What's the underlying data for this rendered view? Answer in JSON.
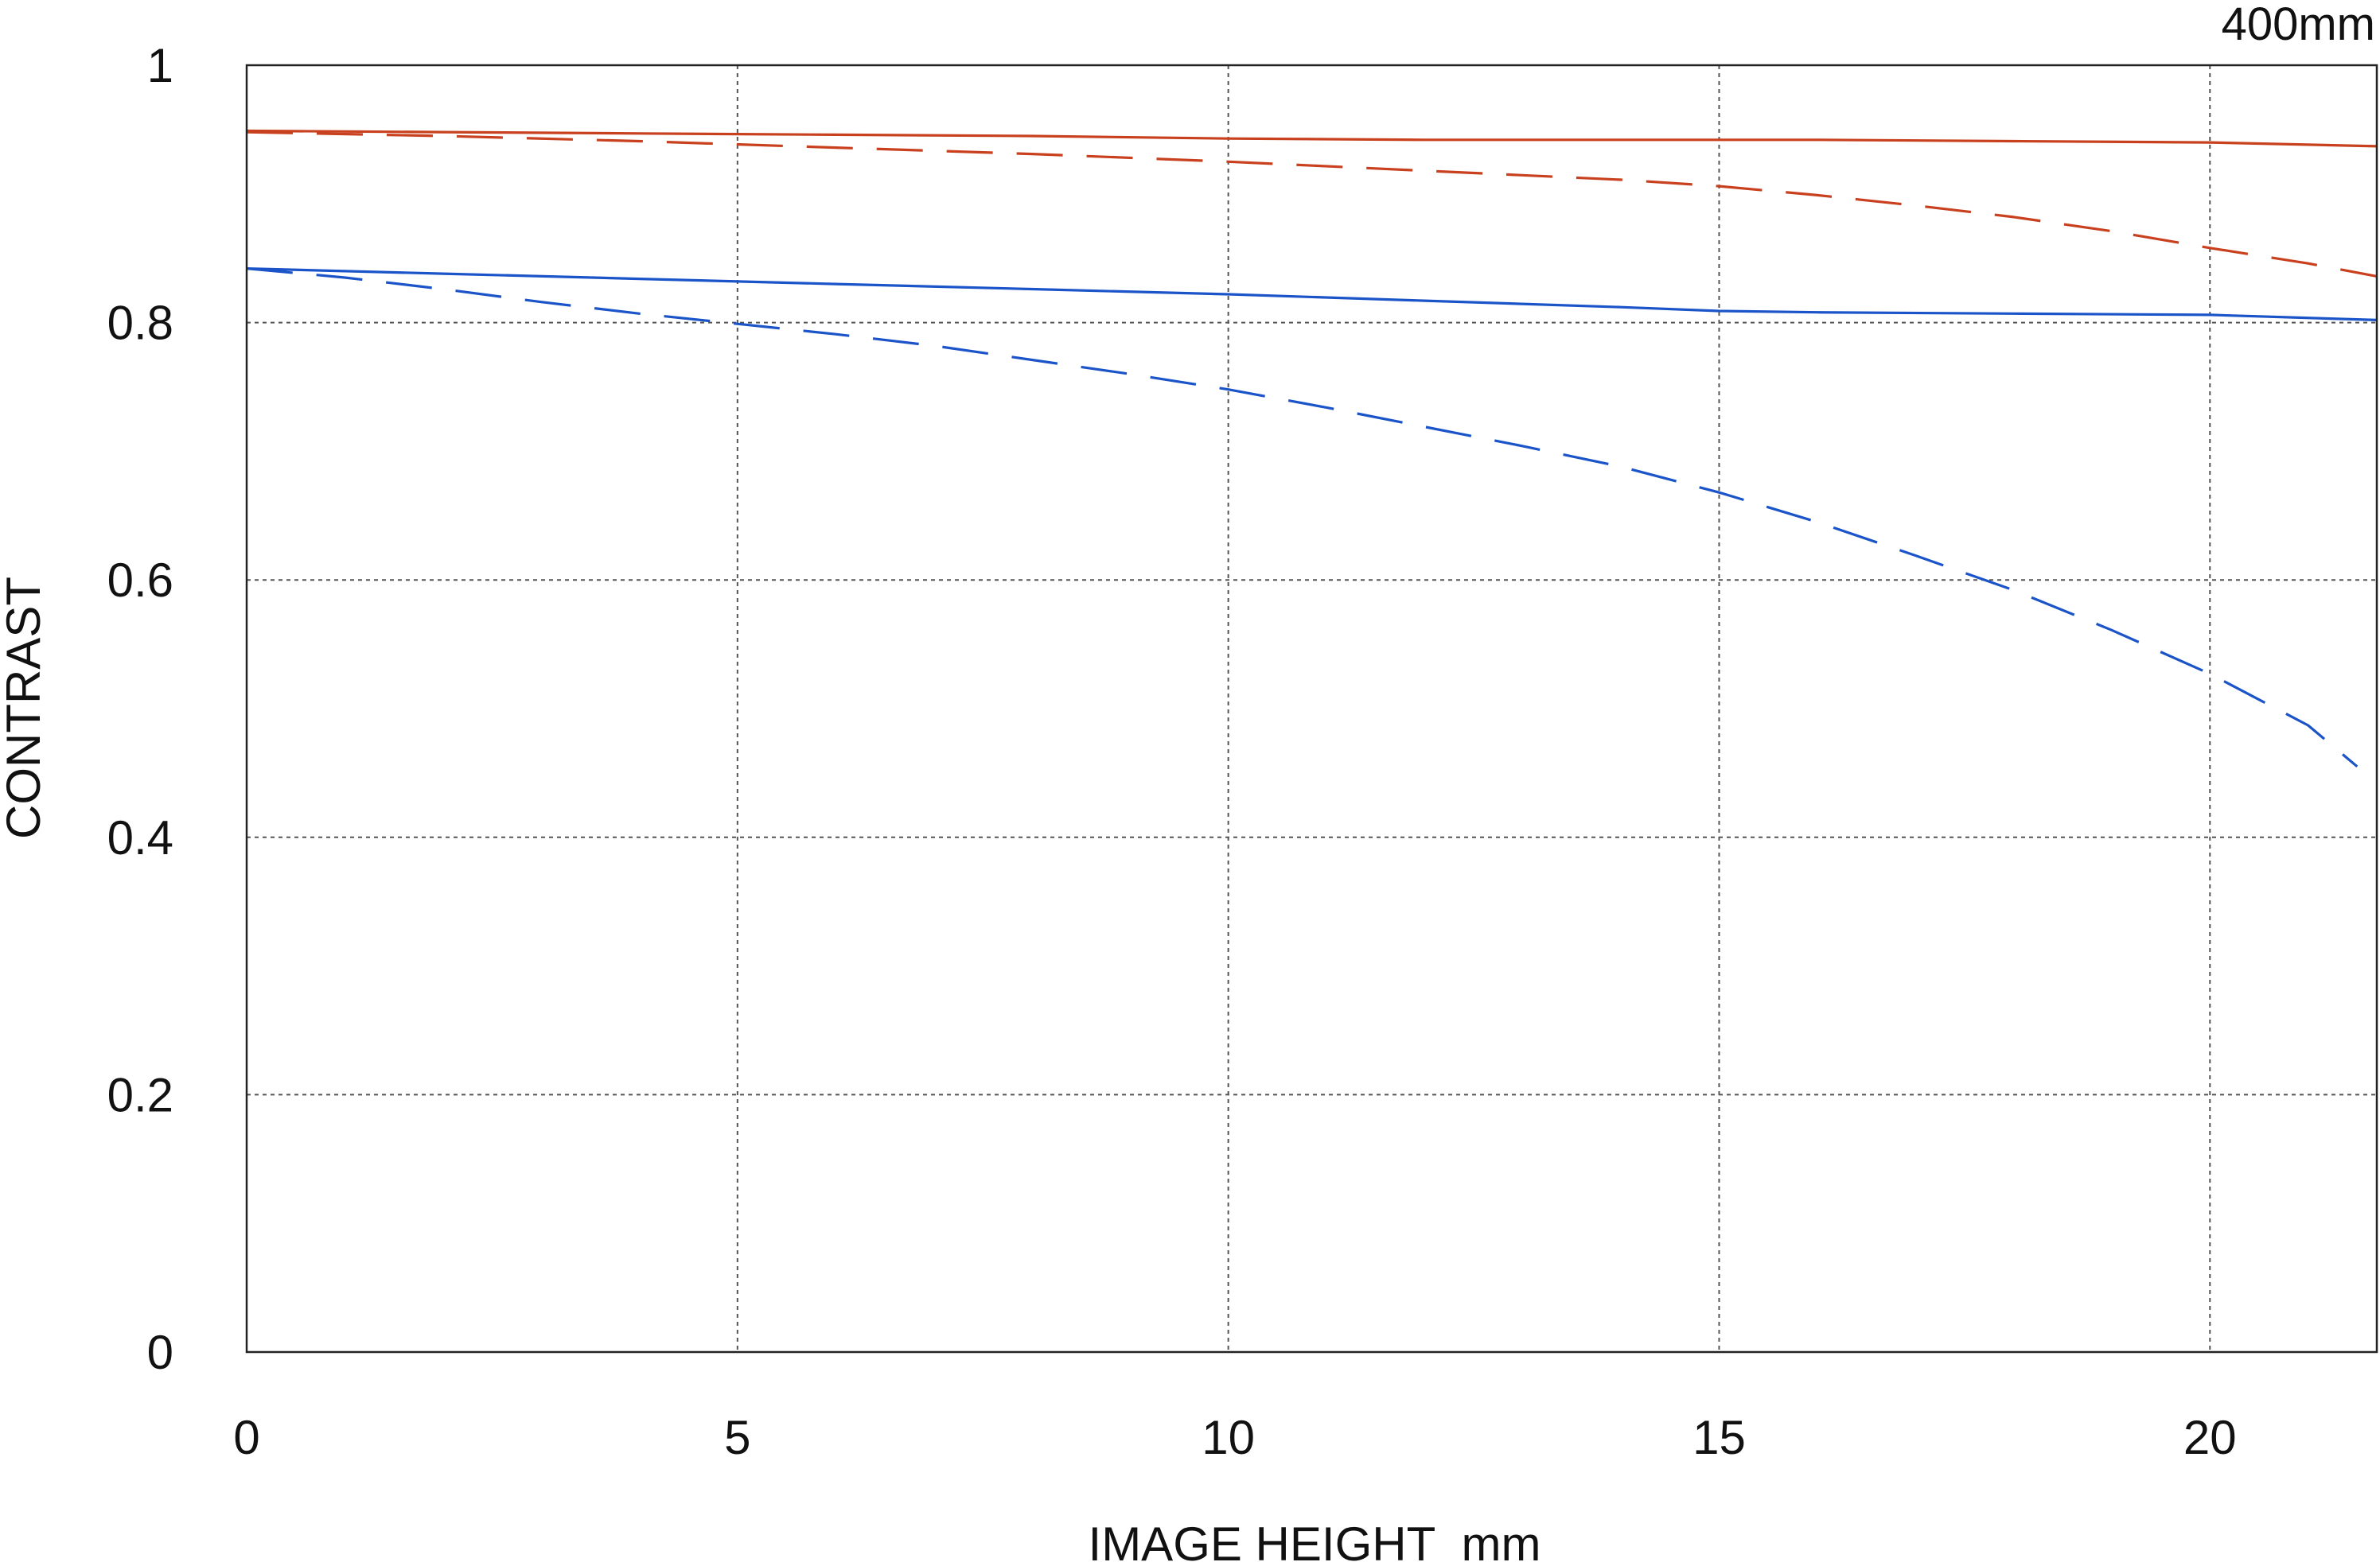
{
  "chart_data": {
    "type": "line",
    "title": "",
    "annotation": "400mm",
    "xlabel": "IMAGE HEIGHT  mm",
    "ylabel": "CONTRAST",
    "xlim": [
      0,
      21.7
    ],
    "ylim": [
      0,
      1
    ],
    "x_ticks": [
      0,
      5,
      10,
      15,
      20
    ],
    "x_tick_labels": [
      "0",
      "5",
      "10",
      "15",
      "20"
    ],
    "y_ticks": [
      0,
      0.2,
      0.4,
      0.6,
      0.8,
      1
    ],
    "y_tick_labels": [
      "0",
      "0.2",
      "0.4",
      "0.6",
      "0.8",
      "1"
    ],
    "grid": true,
    "series": [
      {
        "color": "#c8401e",
        "style": "solid",
        "x": [
          0,
          2,
          4,
          6,
          8,
          10,
          12,
          14,
          16,
          18,
          20,
          21.7
        ],
        "y": [
          0.949,
          0.948,
          0.947,
          0.946,
          0.945,
          0.943,
          0.942,
          0.942,
          0.942,
          0.941,
          0.94,
          0.937
        ]
      },
      {
        "color": "#c8401e",
        "style": "dashed",
        "x": [
          0,
          2,
          4,
          6,
          8,
          10,
          12,
          14,
          15,
          16,
          17,
          18,
          19,
          20,
          21,
          21.7
        ],
        "y": [
          0.948,
          0.945,
          0.941,
          0.936,
          0.931,
          0.925,
          0.918,
          0.911,
          0.906,
          0.899,
          0.891,
          0.882,
          0.871,
          0.858,
          0.846,
          0.836
        ]
      },
      {
        "color": "#1a54c8",
        "style": "solid",
        "x": [
          0,
          2,
          4,
          6,
          8,
          10,
          12,
          14,
          15,
          16,
          18,
          20,
          21.7
        ],
        "y": [
          0.842,
          0.838,
          0.834,
          0.83,
          0.826,
          0.822,
          0.817,
          0.812,
          0.809,
          0.808,
          0.807,
          0.806,
          0.802
        ]
      },
      {
        "color": "#1a54c8",
        "style": "dashed",
        "x": [
          0,
          1,
          2,
          3,
          4,
          5,
          6,
          7,
          8,
          9,
          10,
          11,
          12,
          13,
          14,
          15,
          16,
          17,
          18,
          19,
          20,
          21,
          21.5
        ],
        "y": [
          0.842,
          0.835,
          0.826,
          0.816,
          0.807,
          0.799,
          0.791,
          0.782,
          0.771,
          0.76,
          0.748,
          0.734,
          0.719,
          0.704,
          0.688,
          0.668,
          0.645,
          0.619,
          0.592,
          0.561,
          0.527,
          0.487,
          0.455
        ]
      }
    ]
  }
}
